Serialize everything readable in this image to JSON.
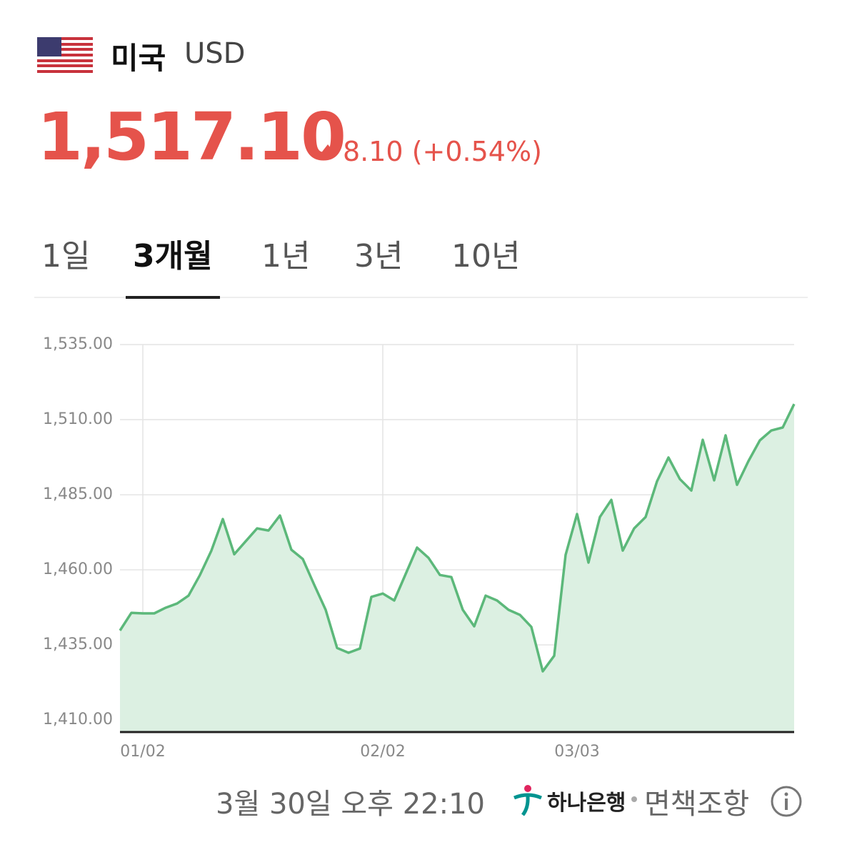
{
  "header": {
    "country": "미국",
    "currency": "USD",
    "price": "1,517.10",
    "change": "8.10 (+0.54%)"
  },
  "tabs": [
    "1일",
    "3개월",
    "1년",
    "3년",
    "10년"
  ],
  "active_tab": 1,
  "footer": {
    "timestamp": "3월 30일 오후 22:10",
    "source": "하나은행",
    "disclaimer": "면책조항"
  },
  "chart_data": {
    "type": "line",
    "categories": [
      null,
      null,
      "01/02",
      null,
      null,
      null,
      null,
      null,
      null,
      null,
      null,
      null,
      null,
      null,
      null,
      null,
      null,
      null,
      null,
      null,
      null,
      null,
      null,
      "02/02",
      null,
      null,
      null,
      null,
      null,
      null,
      null,
      null,
      null,
      null,
      null,
      null,
      null,
      null,
      null,
      null,
      "03/03",
      null,
      null,
      null,
      null,
      null,
      null,
      null,
      null,
      null,
      null,
      null,
      null,
      null,
      null,
      null,
      null,
      null,
      null,
      null
    ],
    "series": [
      {
        "color": "#5cb87a",
        "values": [
          1439.8,
          1445.7,
          1445.5,
          1445.5,
          1447.4,
          1448.8,
          1451.4,
          1458.3,
          1466.4,
          1476.9,
          1465.2,
          1469.5,
          1473.8,
          1473.1,
          1478.1,
          1466.7,
          1463.6,
          1455.0,
          1446.7,
          1434.0,
          1432.4,
          1433.8,
          1451.0,
          1452.1,
          1449.8,
          1458.6,
          1467.4,
          1464.0,
          1458.3,
          1457.6,
          1446.7,
          1441.2,
          1451.4,
          1449.8,
          1446.7,
          1445.0,
          1441.0,
          1426.2,
          1431.4,
          1465.0,
          1478.6,
          1462.4,
          1477.6,
          1483.3,
          1466.4,
          1473.8,
          1477.6,
          1489.5,
          1497.4,
          1490.2,
          1486.4,
          1503.3,
          1489.8,
          1504.8,
          1488.3,
          1496.2,
          1503.1,
          1506.4,
          1507.4,
          1515.2
        ]
      }
    ],
    "ylim": [
      1406,
      1535
    ],
    "yticks": [
      {
        "value": 1410,
        "label": "1,410.00"
      },
      {
        "value": 1435,
        "label": "1,435.00"
      },
      {
        "value": 1460,
        "label": "1,460.00"
      },
      {
        "value": 1485,
        "label": "1,485.00"
      },
      {
        "value": 1510,
        "label": "1,510.00"
      },
      {
        "value": 1535,
        "label": "1,535.00"
      }
    ],
    "grid": true,
    "fill_color": "#dcf0e2"
  }
}
